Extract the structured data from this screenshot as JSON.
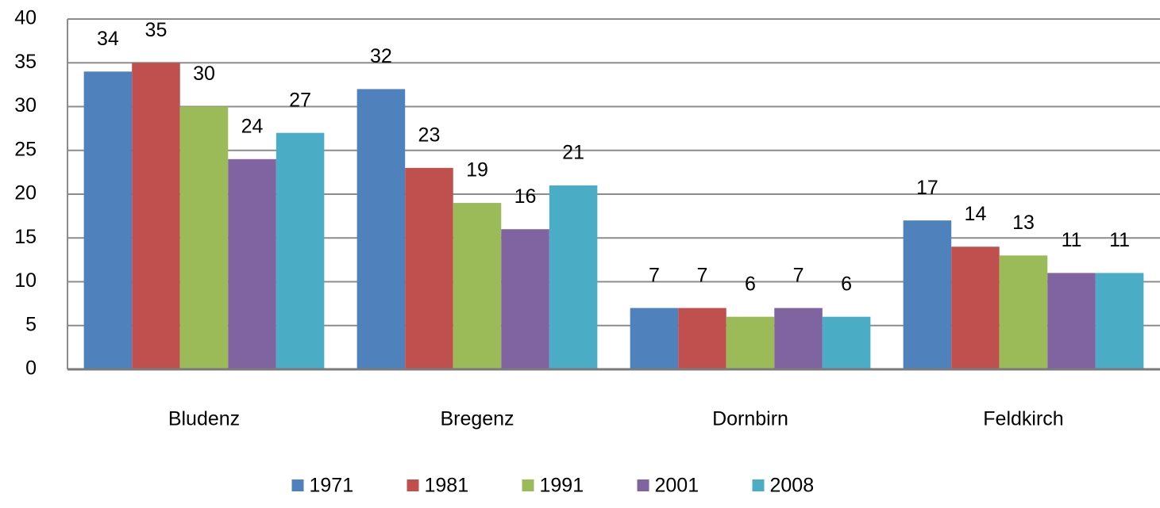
{
  "chart_data": {
    "type": "bar",
    "categories": [
      "Bludenz",
      "Bregenz",
      "Dornbirn",
      "Feldkirch"
    ],
    "series": [
      {
        "name": "1971",
        "color": "#4f81bd",
        "values": [
          34,
          32,
          7,
          17
        ]
      },
      {
        "name": "1981",
        "color": "#c0504d",
        "values": [
          35,
          23,
          7,
          14
        ]
      },
      {
        "name": "1991",
        "color": "#9bbb59",
        "values": [
          30,
          19,
          6,
          13
        ]
      },
      {
        "name": "2001",
        "color": "#8064a2",
        "values": [
          24,
          16,
          7,
          11
        ]
      },
      {
        "name": "2008",
        "color": "#4bacc6",
        "values": [
          27,
          21,
          6,
          11
        ]
      }
    ],
    "ylim": [
      0,
      40
    ],
    "yticks": [
      0,
      5,
      10,
      15,
      20,
      25,
      30,
      35,
      40
    ],
    "grid": true,
    "legend": "bottom"
  }
}
